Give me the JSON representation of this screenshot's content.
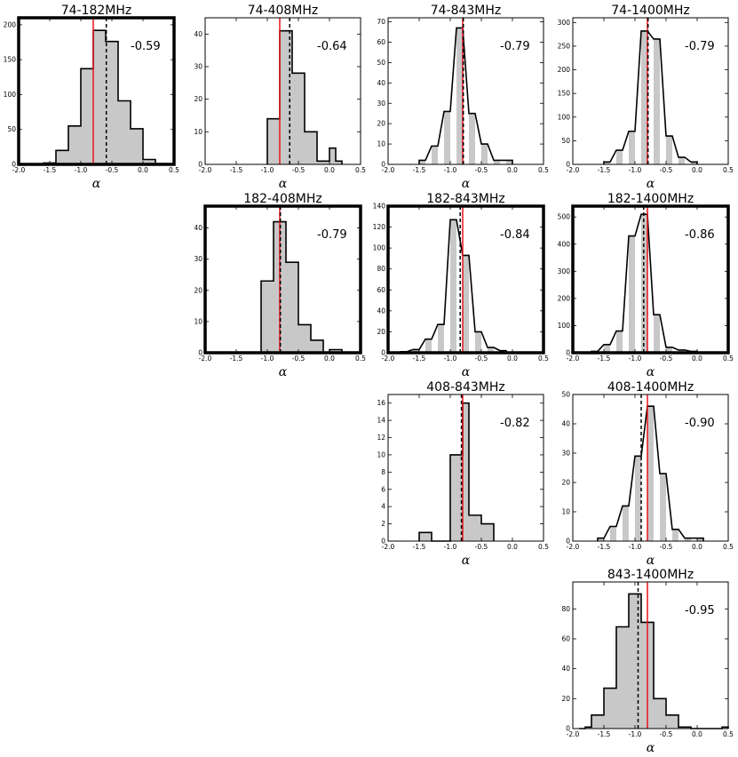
{
  "chart_data": [
    {
      "type": "bar",
      "subtype": "histogram",
      "title": "74-182MHz",
      "xlabel": "α",
      "xlim": [
        -2.0,
        0.5
      ],
      "ylim": [
        0,
        210
      ],
      "xticks": [
        "-2.0",
        "-1.5",
        "-1.0",
        "-0.5",
        "0.0",
        "0.5"
      ],
      "yticks": [
        "0",
        "50",
        "100",
        "150",
        "200"
      ],
      "bin_width": 0.2,
      "bin_starts": [
        -1.6,
        -1.4,
        -1.2,
        -1.0,
        -0.8,
        -0.6,
        -0.4,
        -0.2,
        0.0,
        0.2
      ],
      "values": [
        2,
        20,
        55,
        137,
        192,
        176,
        91,
        51,
        7,
        1
      ],
      "median_value": -0.59,
      "median_label": "-0.59",
      "reference_alpha": -0.8,
      "highlighted": true
    },
    {
      "type": "bar",
      "subtype": "histogram",
      "title": "74-408MHz",
      "xlabel": "α",
      "xlim": [
        -2.0,
        0.5
      ],
      "ylim": [
        0,
        45
      ],
      "xticks": [
        "-2.0",
        "-1.5",
        "-1.0",
        "-0.5",
        "0.0",
        "0.5"
      ],
      "yticks": [
        "0",
        "10",
        "20",
        "30",
        "40"
      ],
      "bin_width": 0.1,
      "bin_starts": [
        -1.0,
        -0.9,
        -0.8,
        -0.7,
        -0.6,
        -0.5,
        -0.4,
        -0.3,
        -0.2,
        -0.1,
        0.0,
        0.1
      ],
      "values": [
        14,
        14,
        41,
        41,
        28,
        28,
        10,
        10,
        1,
        1,
        5,
        1
      ],
      "median_value": -0.64,
      "median_label": "-0.64",
      "reference_alpha": -0.8,
      "highlighted": false
    },
    {
      "type": "bar",
      "subtype": "histogram",
      "title": "74-843MHz",
      "xlabel": "α",
      "xlim": [
        -2.0,
        0.5
      ],
      "ylim": [
        0,
        72
      ],
      "xticks": [
        "-2.0",
        "-1.5",
        "-1.0",
        "-0.5",
        "0.0",
        "0.5"
      ],
      "yticks": [
        "0",
        "10",
        "20",
        "30",
        "40",
        "50",
        "60",
        "70"
      ],
      "bin_width": 0.1,
      "bin_starts": [
        -1.5,
        -1.3,
        -1.1,
        -0.9,
        -0.7,
        -0.5,
        -0.3,
        -0.1
      ],
      "values": [
        2,
        9,
        26,
        67,
        25,
        10,
        2,
        2
      ],
      "median_value": -0.79,
      "median_label": "-0.79",
      "reference_alpha": -0.8,
      "highlighted": false
    },
    {
      "type": "bar",
      "subtype": "histogram",
      "title": "74-1400MHz",
      "xlabel": "α",
      "xlim": [
        -2.0,
        0.5
      ],
      "ylim": [
        0,
        310
      ],
      "xticks": [
        "-2.0",
        "-1.5",
        "-1.0",
        "-0.5",
        "0.0",
        "0.5"
      ],
      "yticks": [
        "0",
        "50",
        "100",
        "150",
        "200",
        "250",
        "300"
      ],
      "bin_width": 0.1,
      "bin_starts": [
        -1.5,
        -1.3,
        -1.1,
        -0.9,
        -0.7,
        -0.5,
        -0.3,
        -0.1
      ],
      "values": [
        5,
        30,
        70,
        282,
        265,
        60,
        15,
        5
      ],
      "median_value": -0.79,
      "median_label": "-0.79",
      "reference_alpha": -0.8,
      "highlighted": false
    },
    {
      "type": "bar",
      "subtype": "histogram",
      "title": "182-408MHz",
      "xlabel": "α",
      "xlim": [
        -2.0,
        0.5
      ],
      "ylim": [
        0,
        47
      ],
      "xticks": [
        "-2.0",
        "-1.5",
        "-1.0",
        "-0.5",
        "0.0",
        "0.5"
      ],
      "yticks": [
        "0",
        "10",
        "20",
        "30",
        "40"
      ],
      "bin_width": 0.1,
      "bin_starts": [
        -1.1,
        -1.0,
        -0.9,
        -0.8,
        -0.7,
        -0.6,
        -0.5,
        -0.4,
        -0.3,
        -0.2,
        -0.1,
        0.0,
        0.1
      ],
      "values": [
        23,
        23,
        42,
        42,
        29,
        29,
        9,
        9,
        4,
        4,
        0,
        1,
        1
      ],
      "median_value": -0.79,
      "median_label": "-0.79",
      "reference_alpha": -0.8,
      "highlighted": true
    },
    {
      "type": "bar",
      "subtype": "histogram",
      "title": "182-843MHz",
      "xlabel": "α",
      "xlim": [
        -2.0,
        0.5
      ],
      "ylim": [
        0,
        140
      ],
      "xticks": [
        "-2.0",
        "-1.5",
        "-1.0",
        "-0.5",
        "0.0",
        "0.5"
      ],
      "yticks": [
        "0",
        "20",
        "40",
        "60",
        "80",
        "100",
        "120",
        "140"
      ],
      "bin_width": 0.1,
      "bin_starts": [
        -1.8,
        -1.6,
        -1.4,
        -1.2,
        -1.0,
        -0.8,
        -0.6,
        -0.4,
        -0.2
      ],
      "values": [
        1,
        3,
        13,
        27,
        127,
        93,
        20,
        5,
        2
      ],
      "median_value": -0.84,
      "median_label": "-0.84",
      "reference_alpha": -0.8,
      "highlighted": true
    },
    {
      "type": "bar",
      "subtype": "histogram",
      "title": "182-1400MHz",
      "xlabel": "α",
      "xlim": [
        -2.0,
        0.5
      ],
      "ylim": [
        0,
        540
      ],
      "xticks": [
        "-2.0",
        "-1.5",
        "-1.0",
        "-0.5",
        "0.0",
        "0.5"
      ],
      "yticks": [
        "0",
        "100",
        "200",
        "300",
        "400",
        "500"
      ],
      "bin_width": 0.1,
      "bin_starts": [
        -1.7,
        -1.5,
        -1.3,
        -1.1,
        -0.9,
        -0.7,
        -0.5,
        -0.3,
        -0.1
      ],
      "values": [
        5,
        30,
        80,
        430,
        510,
        140,
        20,
        10,
        5
      ],
      "median_value": -0.86,
      "median_label": "-0.86",
      "reference_alpha": -0.8,
      "highlighted": true
    },
    {
      "type": "bar",
      "subtype": "histogram",
      "title": "408-843MHz",
      "xlabel": "α",
      "xlim": [
        -2.0,
        0.5
      ],
      "ylim": [
        0,
        17
      ],
      "xticks": [
        "-2.0",
        "-1.5",
        "-1.0",
        "-0.5",
        "0.0",
        "0.5"
      ],
      "yticks": [
        "0",
        "2",
        "4",
        "6",
        "8",
        "10",
        "12",
        "14",
        "16"
      ],
      "bin_width": 0.1,
      "bin_starts": [
        -1.5,
        -1.4,
        -1.3,
        -1.2,
        -1.1,
        -1.0,
        -0.9,
        -0.8,
        -0.7,
        -0.6,
        -0.5,
        -0.4
      ],
      "values": [
        1,
        1,
        0,
        0,
        0,
        10,
        10,
        16,
        3,
        3,
        2,
        2
      ],
      "median_value": -0.82,
      "median_label": "-0.82",
      "reference_alpha": -0.8,
      "highlighted": false
    },
    {
      "type": "bar",
      "subtype": "histogram",
      "title": "408-1400MHz",
      "xlabel": "α",
      "xlim": [
        -2.0,
        0.5
      ],
      "ylim": [
        0,
        50
      ],
      "xticks": [
        "-2.0",
        "-1.5",
        "-1.0",
        "-0.5",
        "0.0",
        "0.5"
      ],
      "yticks": [
        "0",
        "10",
        "20",
        "30",
        "40",
        "50"
      ],
      "bin_width": 0.1,
      "bin_starts": [
        -1.6,
        -1.4,
        -1.2,
        -1.0,
        -0.8,
        -0.6,
        -0.4,
        -0.2,
        0.0
      ],
      "values": [
        1,
        5,
        12,
        29,
        46,
        23,
        4,
        1,
        1
      ],
      "median_value": -0.9,
      "median_label": "-0.90",
      "reference_alpha": -0.8,
      "highlighted": false
    },
    {
      "type": "bar",
      "subtype": "histogram",
      "title": "843-1400MHz",
      "xlabel": "α",
      "xlim": [
        -2.0,
        0.5
      ],
      "ylim": [
        0,
        98
      ],
      "xticks": [
        "-2.0",
        "-1.5",
        "-1.0",
        "-0.5",
        "0.0",
        "0.5"
      ],
      "yticks": [
        "0",
        "20",
        "40",
        "60",
        "80"
      ],
      "bin_width": 0.1,
      "bin_starts": [
        -1.9,
        -1.8,
        -1.7,
        -1.6,
        -1.5,
        -1.4,
        -1.3,
        -1.2,
        -1.1,
        -1.0,
        -0.9,
        -0.8,
        -0.7,
        -0.6,
        -0.5,
        -0.4,
        -0.3,
        -0.2,
        -0.1,
        0.0,
        0.1,
        0.2,
        0.3,
        0.4
      ],
      "values": [
        0,
        1,
        9,
        9,
        27,
        27,
        68,
        68,
        90,
        90,
        71,
        71,
        20,
        20,
        9,
        9,
        1,
        1,
        0,
        0,
        0,
        0,
        0,
        1
      ],
      "median_value": -0.95,
      "median_label": "-0.95",
      "reference_alpha": -0.8,
      "highlighted": false
    }
  ]
}
